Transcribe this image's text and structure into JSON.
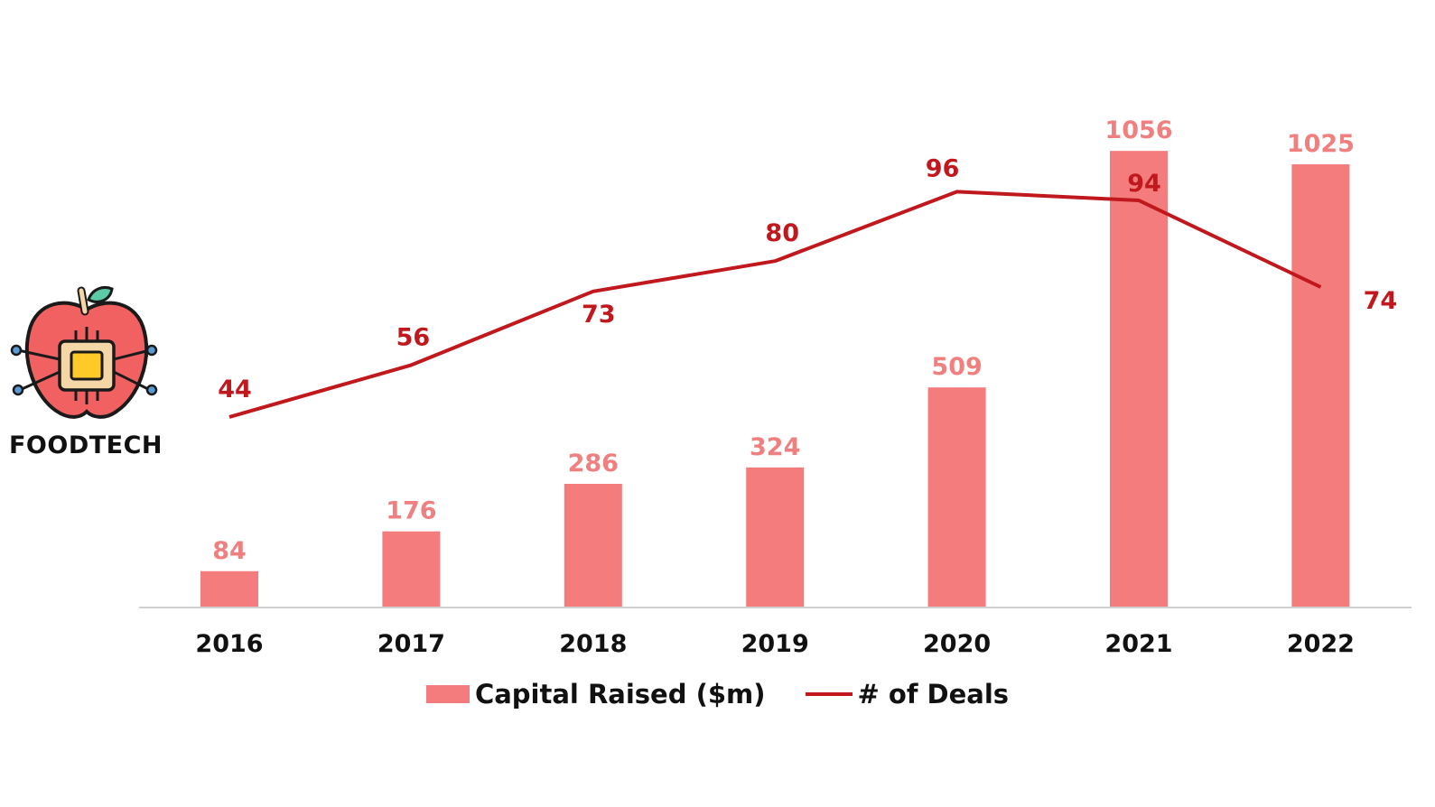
{
  "logo": {
    "label": "FOODTECH",
    "icon": "apple-chip-icon"
  },
  "colors": {
    "bar": "#F47C7C",
    "line": "#C0181C",
    "bar_label": "#F08080",
    "axis": "#D0D0D0"
  },
  "chart_data": {
    "type": "bar",
    "categories": [
      "2016",
      "2017",
      "2018",
      "2019",
      "2020",
      "2021",
      "2022"
    ],
    "series": [
      {
        "name": "Capital Raised ($m)",
        "type": "bar",
        "axis": "left",
        "values": [
          84,
          176,
          286,
          324,
          509,
          1056,
          1025
        ]
      },
      {
        "name": "# of Deals",
        "type": "line",
        "axis": "right",
        "values": [
          44,
          56,
          73,
          80,
          96,
          94,
          74
        ]
      }
    ],
    "ylim": [
      0,
      1100
    ],
    "y2lim": [
      0,
      130
    ],
    "legend_position": "bottom-center",
    "grid": false
  }
}
